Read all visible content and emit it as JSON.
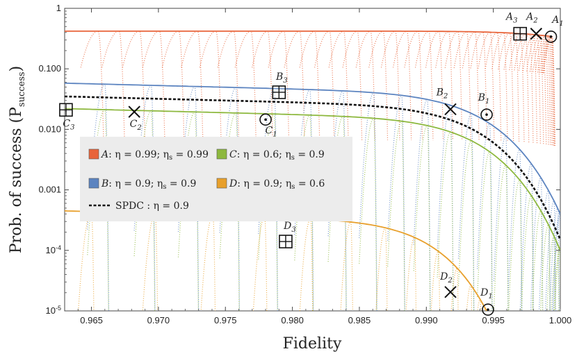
{
  "chart_data": {
    "type": "scatter",
    "title": "",
    "xlabel": "Fidelity",
    "ylabel": "Prob. of success (P",
    "ylabel_sub": "success",
    "ylabel_close": ")",
    "x_range": [
      0.963,
      1.0
    ],
    "y_range_log10": [
      -5,
      0
    ],
    "x_ticks": [
      {
        "value": 0.965,
        "label": "0.965"
      },
      {
        "value": 0.97,
        "label": "0.970"
      },
      {
        "value": 0.975,
        "label": "0.975"
      },
      {
        "value": 0.98,
        "label": "0.980"
      },
      {
        "value": 0.985,
        "label": "0.985"
      },
      {
        "value": 0.99,
        "label": "0.990"
      },
      {
        "value": 0.995,
        "label": "0.995"
      },
      {
        "value": 1.0,
        "label": "1.000"
      }
    ],
    "y_ticks": [
      {
        "value": 1,
        "label": "1"
      },
      {
        "value": 0.1,
        "label": "0.100"
      },
      {
        "value": 0.01,
        "label": "0.010"
      },
      {
        "value": 0.001,
        "label": "0.001"
      },
      {
        "value": 0.0001,
        "label": "10",
        "sup": "-4"
      },
      {
        "value": 1e-05,
        "label": "10",
        "sup": "-5"
      }
    ],
    "series": [
      {
        "id": "A",
        "name": "A",
        "color": "#e8643a",
        "p_max": 0.42,
        "x_end": 0.9994,
        "p_end": 0.34,
        "curve_k": 0.0,
        "scallops": 48,
        "scallop_start": 0.9655,
        "scallop_step_frac": 0.72
      },
      {
        "id": "B",
        "name": "B",
        "color": "#5c84c0",
        "p_max": 0.058,
        "x_end": 1.0,
        "p_end": 0.0004,
        "curve_k": 1.0,
        "scallops": 22,
        "scallop_start": 0.966,
        "scallop_step_frac": 0.8
      },
      {
        "id": "C",
        "name": "C",
        "color": "#8db83e",
        "p_max": 0.022,
        "x_end": 1.0,
        "p_end": 0.0001,
        "curve_k": 1.0,
        "scallops": 22,
        "scallop_start": 0.966,
        "scallop_step_frac": 0.8
      },
      {
        "id": "D",
        "name": "D",
        "color": "#e8a02c",
        "p_max": 0.00045,
        "x_end": 0.9945,
        "p_end": 1e-05,
        "curve_k": 1.0,
        "scallops": 14,
        "scallop_start": 0.965,
        "scallop_step_frac": 0.85
      },
      {
        "id": "SPDC",
        "name": "SPDC",
        "color": "#111111",
        "p_max": 0.035,
        "x_end": 1.0,
        "p_end": 0.00015,
        "curve_k": 1.0,
        "dashed": true
      }
    ],
    "legend": [
      {
        "id": "A",
        "label": ": η = 0.99; η",
        "sub": "s",
        "tail": " = 0.99",
        "letter": "A",
        "color": "#e8643a"
      },
      {
        "id": "C",
        "label": ": η = 0.6; η",
        "sub": "s",
        "tail": " = 0.9",
        "letter": "C",
        "color": "#8db83e"
      },
      {
        "id": "B",
        "label": ": η = 0.9; η",
        "sub": "s",
        "tail": " = 0.9",
        "letter": "B",
        "color": "#5c84c0"
      },
      {
        "id": "D",
        "label": ": η = 0.9; η",
        "sub": "s",
        "tail": " = 0.6",
        "letter": "D",
        "color": "#e8a02c"
      },
      {
        "id": "SPDC",
        "label": "SPDC :  η = 0.9",
        "color": "#111111",
        "dashed": true
      }
    ],
    "markers": [
      {
        "id": "A1",
        "letter": "A",
        "sub": "1",
        "shape": "circle-dot",
        "x": 0.9993,
        "y": 0.34
      },
      {
        "id": "A2",
        "letter": "A",
        "sub": "2",
        "shape": "cross",
        "x": 0.9982,
        "y": 0.38
      },
      {
        "id": "A3",
        "letter": "A",
        "sub": "3",
        "shape": "boxplus",
        "x": 0.997,
        "y": 0.38
      },
      {
        "id": "B1",
        "letter": "B",
        "sub": "1",
        "shape": "circle-dot",
        "x": 0.9945,
        "y": 0.0175
      },
      {
        "id": "B2",
        "letter": "B",
        "sub": "2",
        "shape": "cross",
        "x": 0.9918,
        "y": 0.0215
      },
      {
        "id": "B3",
        "letter": "B",
        "sub": "3",
        "shape": "boxplus",
        "x": 0.979,
        "y": 0.041
      },
      {
        "id": "C1",
        "letter": "C",
        "sub": "1",
        "shape": "circle-dot",
        "x": 0.978,
        "y": 0.0145
      },
      {
        "id": "C2",
        "letter": "C",
        "sub": "2",
        "shape": "cross",
        "x": 0.9682,
        "y": 0.0195
      },
      {
        "id": "C3",
        "letter": "C",
        "sub": "3",
        "shape": "boxplus",
        "x": 0.9631,
        "y": 0.021
      },
      {
        "id": "D1",
        "letter": "D",
        "sub": "1",
        "shape": "circle-dot",
        "x": 0.9946,
        "y": 1.05e-05
      },
      {
        "id": "D2",
        "letter": "D",
        "sub": "2",
        "shape": "cross",
        "x": 0.9918,
        "y": 2.05e-05
      },
      {
        "id": "D3",
        "letter": "D",
        "sub": "3",
        "shape": "boxplus",
        "x": 0.9795,
        "y": 0.00014
      }
    ]
  }
}
